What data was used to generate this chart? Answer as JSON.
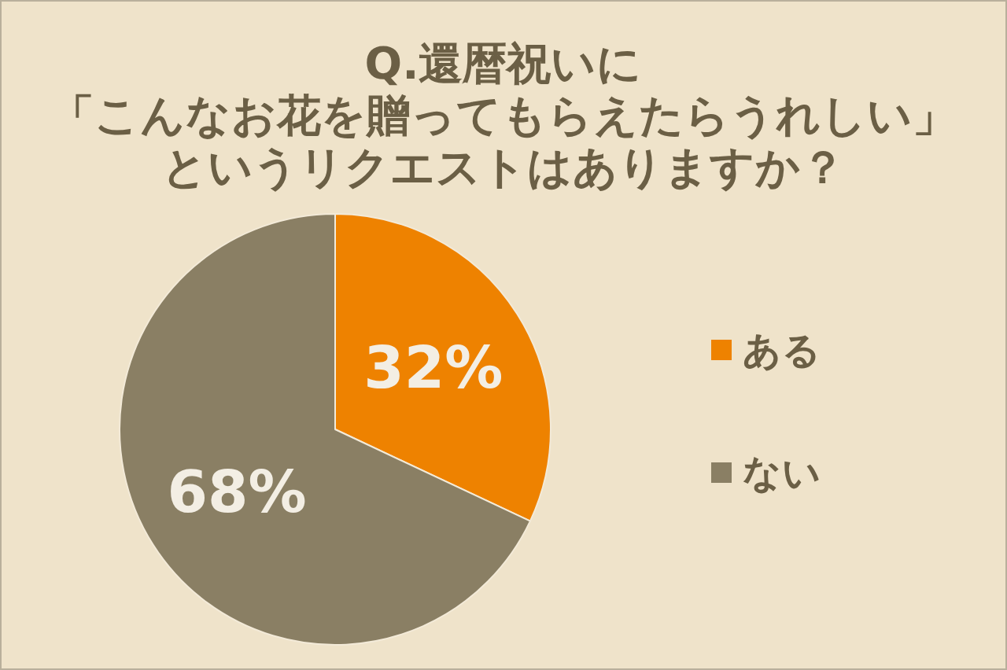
{
  "chart_data": {
    "type": "pie",
    "title": "Q.還暦祝いに「こんなお花を贈ってもらえたらうれしい」というリクエストはありますか？",
    "categories": [
      "ある",
      "ない"
    ],
    "values": [
      32,
      68
    ],
    "colors": [
      "#ee8200",
      "#8a7f64"
    ],
    "value_labels": [
      "32%",
      "68%"
    ],
    "legend": "right"
  }
}
